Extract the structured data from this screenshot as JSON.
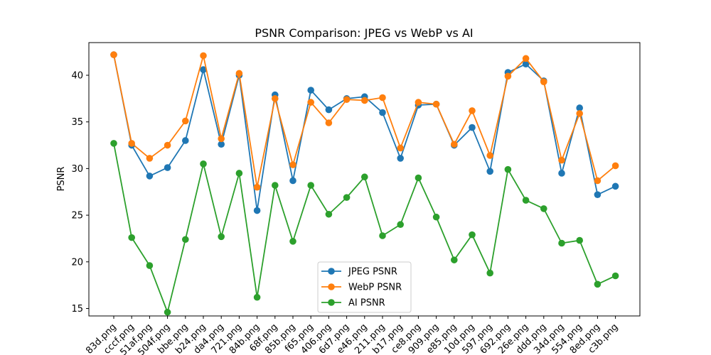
{
  "chart_data": {
    "type": "line",
    "title": "PSNR Comparison: JPEG vs WebP vs AI",
    "xlabel": "",
    "ylabel": "PSNR",
    "ylim": [
      14.2,
      43.5
    ],
    "yticks": [
      15,
      20,
      25,
      30,
      35,
      40
    ],
    "grid": false,
    "legend_position": "lower-center",
    "categories": [
      "83d.png",
      "cccf.png",
      "51af.png",
      "504f.png",
      "bbe.png",
      "b24.png",
      "da4.png",
      "721.png",
      "84b.png",
      "68f.png",
      "85b.png",
      "f65.png",
      "406.png",
      "6d7.png",
      "e46.png",
      "211.png",
      "b17.png",
      "ce8.png",
      "909.png",
      "e85.png",
      "10d.png",
      "597.png",
      "692.png",
      "26e.png",
      "ddd.png",
      "34d.png",
      "554.png",
      "8ed.png",
      "c3b.png"
    ],
    "series": [
      {
        "name": "JPEG PSNR",
        "color": "#1f77b4",
        "values": [
          42.2,
          32.5,
          29.2,
          30.1,
          33.0,
          40.6,
          32.6,
          40.0,
          25.5,
          37.9,
          28.7,
          38.4,
          36.3,
          37.5,
          37.7,
          36.0,
          31.1,
          36.8,
          36.9,
          32.5,
          34.4,
          29.7,
          40.3,
          41.2,
          39.4,
          29.5,
          36.5,
          27.2,
          28.1
        ]
      },
      {
        "name": "WebP PSNR",
        "color": "#ff7f0e",
        "values": [
          42.2,
          32.7,
          31.1,
          32.5,
          35.1,
          42.1,
          33.2,
          40.2,
          28.0,
          37.5,
          30.4,
          37.1,
          34.9,
          37.4,
          37.3,
          37.6,
          32.2,
          37.1,
          36.9,
          32.6,
          36.2,
          31.4,
          39.9,
          41.8,
          39.3,
          30.9,
          35.9,
          28.7,
          30.3
        ]
      },
      {
        "name": "AI PSNR",
        "color": "#2ca02c",
        "values": [
          32.7,
          22.6,
          19.6,
          14.6,
          22.4,
          30.5,
          22.7,
          29.5,
          16.2,
          28.2,
          22.2,
          28.2,
          25.1,
          26.9,
          29.1,
          22.8,
          24.0,
          29.0,
          24.8,
          20.2,
          22.9,
          18.8,
          29.9,
          26.6,
          25.7,
          22.0,
          22.3,
          17.6,
          18.5
        ]
      }
    ]
  }
}
